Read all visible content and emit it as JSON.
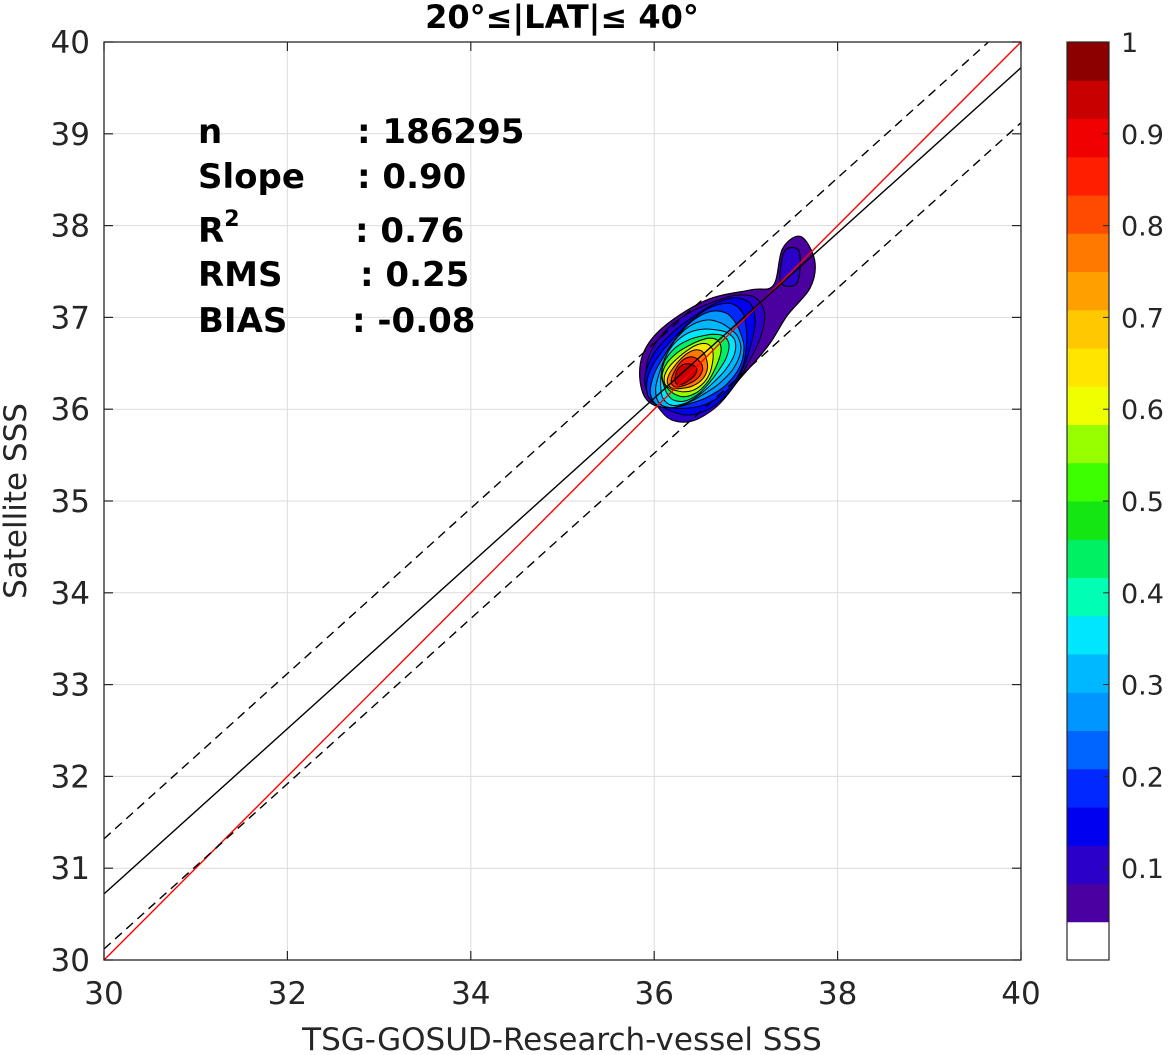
{
  "chart_data": {
    "type": "contour",
    "title": "20°≤|LAT|≤ 40°",
    "xlabel": "TSG-GOSUD-Research-vessel SSS",
    "ylabel": "Satellite SSS",
    "xlim": [
      30,
      40
    ],
    "ylim": [
      30,
      40
    ],
    "xticks": [
      "30",
      "32",
      "34",
      "36",
      "38",
      "40"
    ],
    "yticks": [
      "30",
      "31",
      "32",
      "33",
      "34",
      "35",
      "36",
      "37",
      "38",
      "39",
      "40"
    ],
    "grid": true,
    "stats": [
      {
        "name": "n",
        "value": ": 186295"
      },
      {
        "name": "Slope",
        "value": ": 0.90"
      },
      {
        "name": "R",
        "sup": "2",
        "value": ": 0.76"
      },
      {
        "name": "RMS",
        "value": ": 0.25"
      },
      {
        "name": "BIAS",
        "value": ": -0.08"
      }
    ],
    "lines": [
      {
        "role": "one-to-one",
        "color": "#ff0000",
        "dash": "solid",
        "points": [
          [
            30,
            30
          ],
          [
            40,
            40
          ]
        ]
      },
      {
        "role": "regression",
        "color": "#000000",
        "dash": "solid",
        "points": [
          [
            30,
            30.72
          ],
          [
            40,
            39.72
          ]
        ]
      },
      {
        "role": "upper-bound",
        "color": "#000000",
        "dash": "dashed",
        "points": [
          [
            30,
            31.32
          ],
          [
            40,
            40.32
          ]
        ]
      },
      {
        "role": "lower-bound",
        "color": "#000000",
        "dash": "dashed",
        "points": [
          [
            30,
            30.12
          ],
          [
            40,
            39.12
          ]
        ]
      }
    ],
    "density": {
      "peak": [
        36.32,
        36.37
      ],
      "levels": [
        0.05,
        0.1,
        0.15,
        0.2,
        0.25,
        0.3,
        0.35,
        0.45,
        0.55,
        0.65,
        0.75,
        0.85,
        0.95
      ],
      "outer_contour": [
        [
          35.92,
          36.1
        ],
        [
          36.3,
          35.98
        ],
        [
          36.65,
          36.02
        ],
        [
          36.95,
          36.35
        ],
        [
          37.25,
          36.7
        ],
        [
          37.45,
          37.02
        ],
        [
          37.7,
          37.32
        ],
        [
          37.75,
          37.62
        ],
        [
          37.6,
          37.88
        ],
        [
          37.4,
          37.75
        ],
        [
          37.3,
          37.35
        ],
        [
          37.05,
          37.3
        ],
        [
          36.55,
          37.18
        ],
        [
          36.05,
          36.85
        ],
        [
          35.85,
          36.5
        ]
      ],
      "secondary_blob": [
        [
          37.38,
          37.38
        ],
        [
          37.56,
          37.38
        ],
        [
          37.58,
          37.72
        ],
        [
          37.42,
          37.72
        ]
      ]
    },
    "colorbar": {
      "range": [
        0,
        1
      ],
      "ticks": [
        "0.1",
        "0.2",
        "0.3",
        "0.4",
        "0.5",
        "0.6",
        "0.7",
        "0.8",
        "0.9",
        "1"
      ],
      "colors": [
        "#ffffff",
        "#4b00a0",
        "#2b00c8",
        "#0000f0",
        "#0028ff",
        "#0064ff",
        "#0096ff",
        "#00b8ff",
        "#00e6ff",
        "#00ffb4",
        "#00f064",
        "#14e614",
        "#3cff00",
        "#96ff00",
        "#f0ff00",
        "#ffe600",
        "#ffc800",
        "#ffa000",
        "#ff7800",
        "#ff4b00",
        "#ff1e00",
        "#f00000",
        "#c80000",
        "#8c0000"
      ]
    }
  }
}
